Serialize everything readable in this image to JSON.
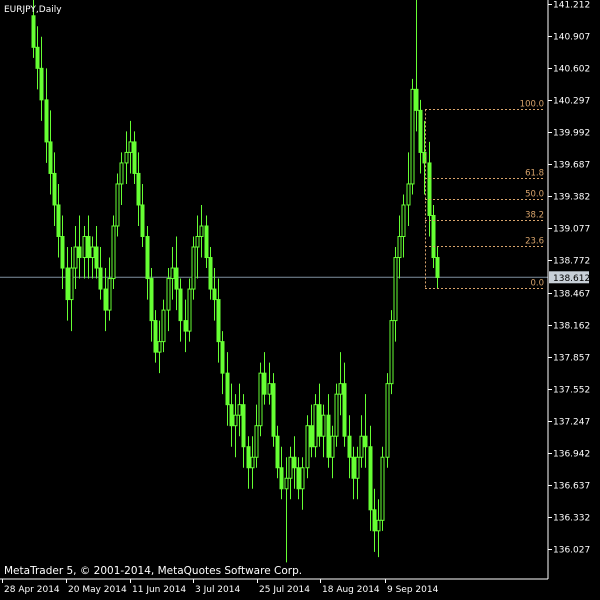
{
  "window": {
    "title": "EURJPY,Daily"
  },
  "copyright": "MetaTrader 5, © 2001-2014, MetaQuotes Software Corp.",
  "current_price": "138.612",
  "colors": {
    "background": "#000000",
    "candle": "#66ff33",
    "fib": "#d7a36b",
    "price_line": "#7f8f9f",
    "axis": "#ffffff"
  },
  "chart_data": {
    "type": "candlestick",
    "symbol": "EURJPY",
    "timeframe": "Daily",
    "y_ticks": [
      "141.212",
      "140.907",
      "140.602",
      "140.297",
      "139.992",
      "139.687",
      "139.382",
      "139.077",
      "138.772",
      "138.467",
      "138.162",
      "137.857",
      "137.552",
      "137.247",
      "136.942",
      "136.637",
      "136.332",
      "136.027"
    ],
    "x_ticks": [
      "28 Apr 2014",
      "20 May 2014",
      "11 Jun 2014",
      "3 Jul 2014",
      "25 Jul 2014",
      "18 Aug 2014",
      "9 Sep 2014"
    ],
    "ylim": [
      135.8,
      141.25
    ],
    "fib_levels": [
      {
        "label": "100.0",
        "price": 140.21
      },
      {
        "label": "61.8",
        "price": 139.56
      },
      {
        "label": "50.0",
        "price": 139.36
      },
      {
        "label": "38.2",
        "price": 139.16
      },
      {
        "label": "23.6",
        "price": 138.91
      },
      {
        "label": "0.0",
        "price": 138.51
      }
    ],
    "candles": [
      {
        "o": 141.1,
        "h": 141.3,
        "l": 140.7,
        "c": 140.8
      },
      {
        "o": 140.8,
        "h": 141.0,
        "l": 140.4,
        "c": 140.6
      },
      {
        "o": 140.6,
        "h": 140.9,
        "l": 140.1,
        "c": 140.3
      },
      {
        "o": 140.3,
        "h": 140.6,
        "l": 139.7,
        "c": 139.9
      },
      {
        "o": 139.9,
        "h": 140.2,
        "l": 139.4,
        "c": 139.6
      },
      {
        "o": 139.6,
        "h": 139.8,
        "l": 139.1,
        "c": 139.3
      },
      {
        "o": 139.3,
        "h": 139.5,
        "l": 138.8,
        "c": 139.0
      },
      {
        "o": 139.0,
        "h": 139.2,
        "l": 138.5,
        "c": 138.7
      },
      {
        "o": 138.7,
        "h": 138.9,
        "l": 138.2,
        "c": 138.4
      },
      {
        "o": 138.4,
        "h": 138.9,
        "l": 138.1,
        "c": 138.7
      },
      {
        "o": 138.7,
        "h": 139.1,
        "l": 138.5,
        "c": 138.9
      },
      {
        "o": 138.9,
        "h": 139.2,
        "l": 138.6,
        "c": 138.8
      },
      {
        "o": 138.8,
        "h": 139.1,
        "l": 138.6,
        "c": 139.0
      },
      {
        "o": 139.0,
        "h": 139.2,
        "l": 138.6,
        "c": 138.8
      },
      {
        "o": 138.8,
        "h": 139.0,
        "l": 138.6,
        "c": 138.9
      },
      {
        "o": 138.9,
        "h": 139.1,
        "l": 138.6,
        "c": 138.7
      },
      {
        "o": 138.7,
        "h": 138.9,
        "l": 138.4,
        "c": 138.5
      },
      {
        "o": 138.5,
        "h": 138.7,
        "l": 138.1,
        "c": 138.3
      },
      {
        "o": 138.3,
        "h": 138.8,
        "l": 138.2,
        "c": 138.6
      },
      {
        "o": 138.6,
        "h": 139.2,
        "l": 138.5,
        "c": 139.1
      },
      {
        "o": 139.1,
        "h": 139.6,
        "l": 139.0,
        "c": 139.5
      },
      {
        "o": 139.5,
        "h": 139.8,
        "l": 139.3,
        "c": 139.7
      },
      {
        "o": 139.7,
        "h": 140.0,
        "l": 139.5,
        "c": 139.8
      },
      {
        "o": 139.8,
        "h": 140.1,
        "l": 139.6,
        "c": 139.9
      },
      {
        "o": 139.9,
        "h": 140.0,
        "l": 139.5,
        "c": 139.6
      },
      {
        "o": 139.6,
        "h": 139.8,
        "l": 139.1,
        "c": 139.3
      },
      {
        "o": 139.3,
        "h": 139.5,
        "l": 138.9,
        "c": 139.0
      },
      {
        "o": 139.0,
        "h": 139.1,
        "l": 138.4,
        "c": 138.6
      },
      {
        "o": 138.6,
        "h": 138.7,
        "l": 138.0,
        "c": 138.2
      },
      {
        "o": 138.2,
        "h": 138.3,
        "l": 137.8,
        "c": 137.9
      },
      {
        "o": 137.9,
        "h": 138.2,
        "l": 137.7,
        "c": 138.0
      },
      {
        "o": 138.0,
        "h": 138.4,
        "l": 137.9,
        "c": 138.3
      },
      {
        "o": 138.3,
        "h": 138.7,
        "l": 138.1,
        "c": 138.6
      },
      {
        "o": 138.6,
        "h": 138.9,
        "l": 138.4,
        "c": 138.7
      },
      {
        "o": 138.7,
        "h": 139.0,
        "l": 138.3,
        "c": 138.5
      },
      {
        "o": 138.5,
        "h": 138.6,
        "l": 138.0,
        "c": 138.2
      },
      {
        "o": 138.2,
        "h": 138.4,
        "l": 137.9,
        "c": 138.1
      },
      {
        "o": 138.1,
        "h": 138.6,
        "l": 138.0,
        "c": 138.5
      },
      {
        "o": 138.5,
        "h": 139.0,
        "l": 138.4,
        "c": 138.9
      },
      {
        "o": 138.9,
        "h": 139.2,
        "l": 138.6,
        "c": 139.0
      },
      {
        "o": 139.0,
        "h": 139.3,
        "l": 138.8,
        "c": 139.1
      },
      {
        "o": 139.1,
        "h": 139.2,
        "l": 138.7,
        "c": 138.8
      },
      {
        "o": 138.8,
        "h": 138.9,
        "l": 138.4,
        "c": 138.5
      },
      {
        "o": 138.5,
        "h": 138.7,
        "l": 138.2,
        "c": 138.4
      },
      {
        "o": 138.4,
        "h": 138.6,
        "l": 137.8,
        "c": 138.0
      },
      {
        "o": 138.0,
        "h": 138.1,
        "l": 137.5,
        "c": 137.7
      },
      {
        "o": 137.7,
        "h": 137.9,
        "l": 137.2,
        "c": 137.4
      },
      {
        "o": 137.4,
        "h": 137.6,
        "l": 137.0,
        "c": 137.2
      },
      {
        "o": 137.2,
        "h": 137.5,
        "l": 136.9,
        "c": 137.3
      },
      {
        "o": 137.3,
        "h": 137.6,
        "l": 137.1,
        "c": 137.4
      },
      {
        "o": 137.4,
        "h": 137.5,
        "l": 136.8,
        "c": 137.0
      },
      {
        "o": 137.0,
        "h": 137.1,
        "l": 136.6,
        "c": 136.8
      },
      {
        "o": 136.8,
        "h": 137.1,
        "l": 136.6,
        "c": 136.9
      },
      {
        "o": 136.9,
        "h": 137.4,
        "l": 136.8,
        "c": 137.2
      },
      {
        "o": 137.2,
        "h": 137.8,
        "l": 137.1,
        "c": 137.7
      },
      {
        "o": 137.7,
        "h": 137.9,
        "l": 137.4,
        "c": 137.5
      },
      {
        "o": 137.5,
        "h": 137.8,
        "l": 137.4,
        "c": 137.6
      },
      {
        "o": 137.6,
        "h": 137.7,
        "l": 137.0,
        "c": 137.1
      },
      {
        "o": 137.1,
        "h": 137.2,
        "l": 136.7,
        "c": 136.8
      },
      {
        "o": 136.8,
        "h": 137.0,
        "l": 136.5,
        "c": 136.6
      },
      {
        "o": 136.6,
        "h": 136.9,
        "l": 135.9,
        "c": 136.7
      },
      {
        "o": 136.7,
        "h": 137.0,
        "l": 136.5,
        "c": 136.9
      },
      {
        "o": 136.9,
        "h": 137.1,
        "l": 136.6,
        "c": 136.8
      },
      {
        "o": 136.8,
        "h": 136.9,
        "l": 136.5,
        "c": 136.6
      },
      {
        "o": 136.6,
        "h": 136.9,
        "l": 136.4,
        "c": 136.8
      },
      {
        "o": 136.8,
        "h": 137.3,
        "l": 136.7,
        "c": 137.2
      },
      {
        "o": 137.2,
        "h": 137.4,
        "l": 136.9,
        "c": 137.0
      },
      {
        "o": 137.0,
        "h": 137.5,
        "l": 136.9,
        "c": 137.4
      },
      {
        "o": 137.4,
        "h": 137.6,
        "l": 137.0,
        "c": 137.1
      },
      {
        "o": 137.1,
        "h": 137.4,
        "l": 136.9,
        "c": 137.3
      },
      {
        "o": 137.3,
        "h": 137.5,
        "l": 136.8,
        "c": 136.9
      },
      {
        "o": 136.9,
        "h": 137.2,
        "l": 136.7,
        "c": 137.1
      },
      {
        "o": 137.1,
        "h": 137.6,
        "l": 137.0,
        "c": 137.5
      },
      {
        "o": 137.5,
        "h": 137.9,
        "l": 137.3,
        "c": 137.6
      },
      {
        "o": 137.6,
        "h": 137.8,
        "l": 137.0,
        "c": 137.1
      },
      {
        "o": 137.1,
        "h": 137.3,
        "l": 136.7,
        "c": 136.9
      },
      {
        "o": 136.9,
        "h": 137.0,
        "l": 136.5,
        "c": 136.7
      },
      {
        "o": 136.7,
        "h": 137.0,
        "l": 136.5,
        "c": 136.9
      },
      {
        "o": 136.9,
        "h": 137.3,
        "l": 136.8,
        "c": 137.1
      },
      {
        "o": 137.1,
        "h": 137.5,
        "l": 136.8,
        "c": 137.0
      },
      {
        "o": 137.0,
        "h": 137.2,
        "l": 136.2,
        "c": 136.4
      },
      {
        "o": 136.4,
        "h": 136.6,
        "l": 136.0,
        "c": 136.2
      },
      {
        "o": 136.2,
        "h": 136.5,
        "l": 135.95,
        "c": 136.3
      },
      {
        "o": 136.3,
        "h": 137.0,
        "l": 136.2,
        "c": 136.9
      },
      {
        "o": 136.9,
        "h": 137.7,
        "l": 136.8,
        "c": 137.6
      },
      {
        "o": 137.6,
        "h": 138.3,
        "l": 137.5,
        "c": 138.2
      },
      {
        "o": 138.2,
        "h": 138.9,
        "l": 138.0,
        "c": 138.8
      },
      {
        "o": 138.8,
        "h": 139.2,
        "l": 138.6,
        "c": 139.0
      },
      {
        "o": 139.0,
        "h": 139.4,
        "l": 138.8,
        "c": 139.3
      },
      {
        "o": 139.3,
        "h": 139.8,
        "l": 139.1,
        "c": 139.5
      },
      {
        "o": 139.5,
        "h": 140.5,
        "l": 139.4,
        "c": 140.4
      },
      {
        "o": 140.4,
        "h": 141.25,
        "l": 140.0,
        "c": 140.2
      },
      {
        "o": 140.2,
        "h": 140.3,
        "l": 139.6,
        "c": 139.8
      },
      {
        "o": 139.8,
        "h": 140.1,
        "l": 139.4,
        "c": 139.7
      },
      {
        "o": 139.7,
        "h": 139.9,
        "l": 139.0,
        "c": 139.2
      },
      {
        "o": 139.2,
        "h": 139.3,
        "l": 138.7,
        "c": 138.8
      },
      {
        "o": 138.8,
        "h": 138.9,
        "l": 138.5,
        "c": 138.61
      }
    ]
  }
}
